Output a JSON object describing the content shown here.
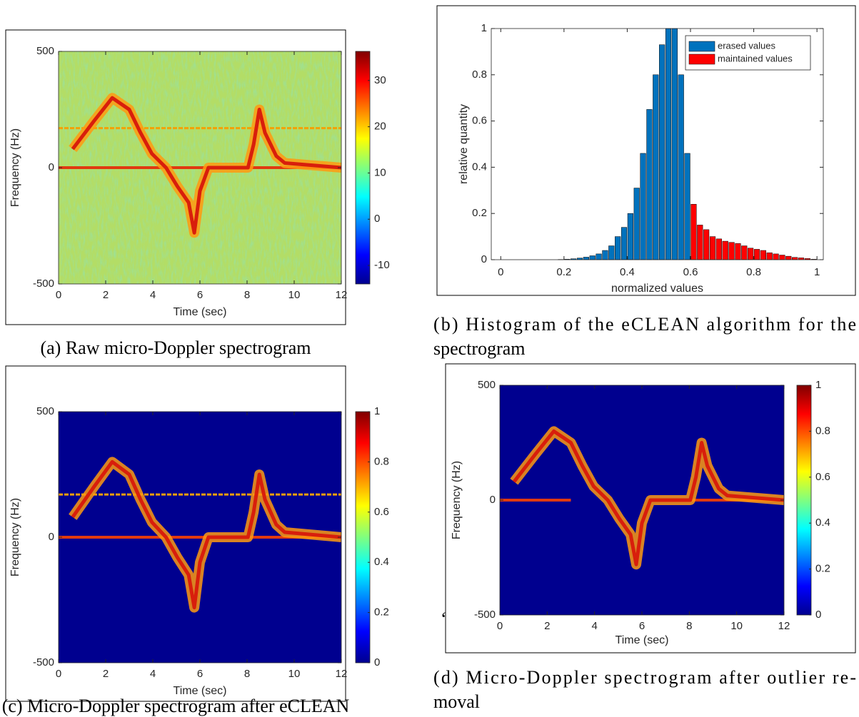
{
  "chart_data": [
    {
      "type": "heatmap",
      "caption": "(a) Raw micro-Doppler spectrogram",
      "xlabel": "Time (sec)",
      "ylabel": "Frequency (Hz)",
      "xlim": [
        0,
        12
      ],
      "xticks": [
        0,
        2,
        4,
        6,
        8,
        10,
        12
      ],
      "ylim": [
        -500,
        500
      ],
      "yticks": [
        -500,
        0,
        500
      ],
      "background_color": "#b3dd66",
      "colorbar": {
        "lim": [
          -14,
          36.3
        ],
        "ticks": [
          -10,
          0,
          10,
          20,
          30
        ]
      }
    },
    {
      "type": "histogram",
      "caption": [
        "(b) Histogram of the eCLEAN algorithm for the",
        "spectrogram"
      ],
      "xlabel": "normalized values",
      "ylabel": "relative quantity",
      "xlim": [
        -0.03,
        1.02
      ],
      "xticks": [
        0,
        0.2,
        0.4,
        0.6,
        0.8,
        1
      ],
      "ylim": [
        0,
        1
      ],
      "yticks": [
        0,
        0.2,
        0.4,
        0.6,
        0.8,
        1
      ],
      "legend": "upper right",
      "bins": [
        0,
        0.02,
        0.04,
        0.06,
        0.08,
        0.1,
        0.12,
        0.14,
        0.16,
        0.18,
        0.2,
        0.22,
        0.24,
        0.26,
        0.28,
        0.3,
        0.32,
        0.34,
        0.36,
        0.38,
        0.4,
        0.42,
        0.44,
        0.46,
        0.48,
        0.5,
        0.52,
        0.54,
        0.56,
        0.58,
        0.6,
        0.62,
        0.64,
        0.66,
        0.68,
        0.7,
        0.72,
        0.74,
        0.76,
        0.78,
        0.8,
        0.82,
        0.84,
        0.86,
        0.88,
        0.9,
        0.92,
        0.94,
        0.96,
        0.98,
        1
      ],
      "series": [
        {
          "name": "erased values",
          "color": "#0072bd",
          "values": [
            0,
            0,
            0,
            0,
            0,
            0,
            0,
            0,
            0,
            0.001,
            0.002,
            0.004,
            0.007,
            0.011,
            0.017,
            0.025,
            0.04,
            0.06,
            0.1,
            0.14,
            0.2,
            0.31,
            0.46,
            0.65,
            0.8,
            0.93,
            1,
            1,
            0.8,
            0.46,
            null,
            null,
            null,
            null,
            null,
            null,
            null,
            null,
            null,
            null,
            null,
            null,
            null,
            null,
            null,
            null,
            null,
            null,
            null,
            null
          ]
        },
        {
          "name": "maintained values",
          "color": "#ff0000",
          "values": [
            null,
            null,
            null,
            null,
            null,
            null,
            null,
            null,
            null,
            null,
            null,
            null,
            null,
            null,
            null,
            null,
            null,
            null,
            null,
            null,
            null,
            null,
            null,
            null,
            null,
            null,
            null,
            null,
            null,
            null,
            0.24,
            0.15,
            0.13,
            0.1,
            0.09,
            0.08,
            0.075,
            0.07,
            0.06,
            0.05,
            0.045,
            0.04,
            0.03,
            0.025,
            0.02,
            0.015,
            0.01,
            0.008,
            0.005,
            0.002
          ]
        }
      ]
    },
    {
      "type": "heatmap",
      "caption": "(c) Micro-Doppler spectrogram after eCLEAN",
      "xlabel": "Time (sec)",
      "ylabel": "Frequency (Hz)",
      "xlim": [
        0,
        12
      ],
      "xticks": [
        0,
        2,
        4,
        6,
        8,
        10,
        12
      ],
      "ylim": [
        -500,
        500
      ],
      "yticks": [
        -500,
        0,
        500
      ],
      "background_color": "#00008f",
      "colorbar": {
        "lim": [
          0,
          1
        ],
        "ticks": [
          0,
          0.2,
          0.4,
          0.6,
          0.8,
          1
        ]
      }
    },
    {
      "type": "heatmap",
      "caption": [
        "(d) Micro-Doppler spectrogram after outlier re-",
        "moval"
      ],
      "xlabel": "Time (sec)",
      "ylabel": "Frequency (Hz)",
      "xlim": [
        0,
        12
      ],
      "xticks": [
        0,
        2,
        4,
        6,
        8,
        10,
        12
      ],
      "ylim": [
        -500,
        500
      ],
      "yticks": [
        -500,
        0,
        500
      ],
      "background_color": "#00008f",
      "colorbar": {
        "lim": [
          0,
          1
        ],
        "ticks": [
          0,
          0.2,
          0.4,
          0.6,
          0.8,
          1
        ]
      },
      "annotation": "‘"
    }
  ]
}
